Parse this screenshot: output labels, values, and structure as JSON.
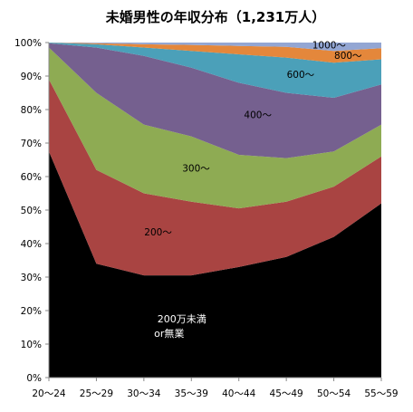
{
  "chart_data": {
    "type": "area",
    "stacked": true,
    "percent": true,
    "title": "未婚男性の年収分布（1,231万人）",
    "categories": [
      "20〜24",
      "25〜29",
      "30〜34",
      "35〜39",
      "40〜44",
      "45〜49",
      "50〜54",
      "55〜59"
    ],
    "ylim": [
      0,
      100
    ],
    "yticks": [
      "0%",
      "10%",
      "20%",
      "30%",
      "40%",
      "50%",
      "60%",
      "70%",
      "80%",
      "90%",
      "100%"
    ],
    "grid": false,
    "legend": "none",
    "series": [
      {
        "name": "200万未満 or無業",
        "color": "#000000",
        "values": [
          67.5,
          34,
          30.5,
          30.5,
          33,
          36,
          42,
          52
        ]
      },
      {
        "name": "200〜",
        "color": "#a94442",
        "values": [
          21.5,
          28,
          24.5,
          22,
          17.5,
          16.5,
          15,
          14
        ]
      },
      {
        "name": "300〜",
        "color": "#8eab53",
        "values": [
          9.5,
          23,
          20.5,
          19.5,
          16,
          13,
          10.5,
          9.5
        ]
      },
      {
        "name": "400〜",
        "color": "#75608f",
        "values": [
          1.3,
          13.5,
          20.5,
          20.5,
          21.5,
          19.5,
          16,
          12
        ]
      },
      {
        "name": "600〜",
        "color": "#4ba0b9",
        "values": [
          0.2,
          1,
          2.5,
          5,
          8.5,
          10.5,
          10.5,
          7.5
        ]
      },
      {
        "name": "800〜",
        "color": "#e4873b",
        "values": [
          0,
          0.3,
          1,
          1.8,
          2.5,
          3.2,
          3.5,
          3.3
        ]
      },
      {
        "name": "1000〜",
        "color": "#93a6d3",
        "values": [
          0,
          0.2,
          0.5,
          0.7,
          1,
          1.3,
          2.5,
          1.7
        ]
      }
    ],
    "band_labels": [
      {
        "text": "200万未満",
        "text2": "or無業",
        "series": 0,
        "light": true
      },
      {
        "text": "200〜",
        "series": 1
      },
      {
        "text": "300〜",
        "series": 2
      },
      {
        "text": "400〜",
        "series": 3
      },
      {
        "text": "600〜",
        "series": 4
      },
      {
        "text": "800〜",
        "series": 5
      },
      {
        "text": "1000〜",
        "series": 6
      }
    ]
  }
}
